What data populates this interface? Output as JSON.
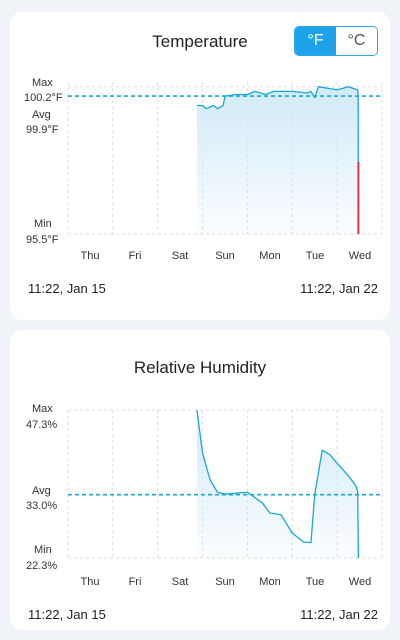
{
  "temperature": {
    "title": "Temperature",
    "unit_f": "°F",
    "unit_c": "°C",
    "active_unit": "F",
    "max_label": "Max",
    "max_value": "100.2°F",
    "avg_label": "Avg",
    "avg_value": "99.9°F",
    "min_label": "Min",
    "min_value": "95.5°F",
    "days": [
      "Thu",
      "Fri",
      "Sat",
      "Sun",
      "Mon",
      "Tue",
      "Wed"
    ],
    "start_time": "11:22,  Jan 15",
    "end_time": "11:22,  Jan 22"
  },
  "humidity": {
    "title": "Relative Humidity",
    "max_label": "Max",
    "max_value": "47.3%",
    "avg_label": "Avg",
    "avg_value": "33.0%",
    "min_label": "Min",
    "min_value": "22.3%",
    "days": [
      "Thu",
      "Fri",
      "Sat",
      "Sun",
      "Mon",
      "Tue",
      "Wed"
    ],
    "start_time": "11:22,  Jan 15",
    "end_time": "11:22,  Jan 22"
  },
  "colors": {
    "line": "#19a7d6",
    "fill": "#cfe9f8",
    "alert": "#e2283a",
    "toggle_active": "#1ea3ea"
  },
  "chart_data": [
    {
      "type": "area",
      "title": "Temperature",
      "series": [
        {
          "values": [
            {
              "x": "Sat 21:00",
              "y": 99.6
            },
            {
              "x": "Sun 00:00",
              "y": 99.6
            },
            {
              "x": "Sun 02:00",
              "y": 99.5
            },
            {
              "x": "Sun 06:00",
              "y": 99.6
            },
            {
              "x": "Sun 08:00",
              "y": 99.5
            },
            {
              "x": "Sun 11:00",
              "y": 99.6
            },
            {
              "x": "Sun 12:00",
              "y": 99.9
            },
            {
              "x": "Sun 18:00",
              "y": 99.95
            },
            {
              "x": "Mon 00:00",
              "y": 99.95
            },
            {
              "x": "Mon 04:00",
              "y": 100.05
            },
            {
              "x": "Mon 10:00",
              "y": 99.95
            },
            {
              "x": "Mon 14:00",
              "y": 100.05
            },
            {
              "x": "Tue 00:00",
              "y": 100.05
            },
            {
              "x": "Tue 08:00",
              "y": 100.0
            },
            {
              "x": "Tue 10:00",
              "y": 100.05
            },
            {
              "x": "Tue 12:00",
              "y": 99.85
            },
            {
              "x": "Tue 14:00",
              "y": 100.2
            },
            {
              "x": "Wed 00:00",
              "y": 100.1
            },
            {
              "x": "Wed 06:00",
              "y": 100.2
            },
            {
              "x": "Wed 11:00",
              "y": 100.1
            },
            {
              "x": "Wed 11:15",
              "y": 99.8
            },
            {
              "x": "Wed 11:22",
              "y": 95.5
            }
          ]
        }
      ],
      "max": 100.2,
      "avg": 99.9,
      "min": 95.5,
      "grid": true
    },
    {
      "type": "area",
      "title": "Relative Humidity",
      "series": [
        {
          "values": [
            {
              "x": "Sat 21:00",
              "y": 47.3
            },
            {
              "x": "Sun 00:00",
              "y": 40.0
            },
            {
              "x": "Sun 04:00",
              "y": 35.5
            },
            {
              "x": "Sun 08:00",
              "y": 33.4
            },
            {
              "x": "Sun 12:00",
              "y": 33.1
            },
            {
              "x": "Mon 00:00",
              "y": 33.4
            },
            {
              "x": "Mon 08:00",
              "y": 31.6
            },
            {
              "x": "Mon 12:00",
              "y": 29.9
            },
            {
              "x": "Mon 18:00",
              "y": 29.6
            },
            {
              "x": "Tue 00:00",
              "y": 26.5
            },
            {
              "x": "Tue 06:00",
              "y": 25.0
            },
            {
              "x": "Tue 10:00",
              "y": 24.9
            },
            {
              "x": "Tue 12:00",
              "y": 33.0
            },
            {
              "x": "Tue 16:00",
              "y": 40.5
            },
            {
              "x": "Tue 20:00",
              "y": 39.8
            },
            {
              "x": "Wed 00:00",
              "y": 38.3
            },
            {
              "x": "Wed 06:00",
              "y": 36.2
            },
            {
              "x": "Wed 10:00",
              "y": 34.5
            },
            {
              "x": "Wed 11:00",
              "y": 33.5
            },
            {
              "x": "Wed 11:22",
              "y": 22.3
            }
          ]
        }
      ],
      "max": 47.3,
      "avg": 33.0,
      "min": 22.3,
      "grid": true
    }
  ]
}
